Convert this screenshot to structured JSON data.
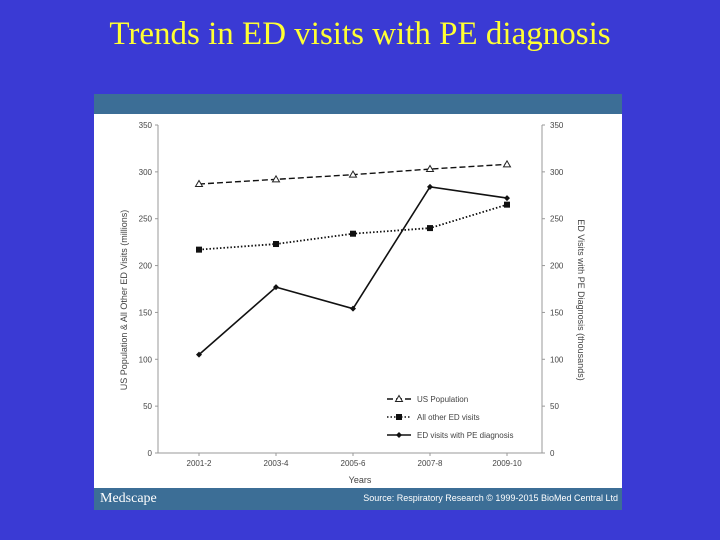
{
  "slide": {
    "title": "Trends in ED visits with PE diagnosis",
    "brand": "Medscape",
    "source": "Source: Respiratory Research © 1999-2015 BioMed Central Ltd"
  },
  "chart_data": {
    "type": "line",
    "categories": [
      "2001-2",
      "2003-4",
      "2005-6",
      "2007-8",
      "2009-10"
    ],
    "xlabel": "Years",
    "ylabel_left": "US Population & All Other ED Visits (millions)",
    "ylabel_right": "ED Visits with PE Diagnosis (thousands)",
    "ylim_left": [
      0,
      350
    ],
    "ylim_right": [
      0,
      350
    ],
    "yticks": [
      0,
      50,
      100,
      150,
      200,
      250,
      300,
      350
    ],
    "grid": false,
    "legend_position": "bottom-right",
    "series": [
      {
        "name": "US Population",
        "axis": "left",
        "style": "dashed",
        "marker": "triangle",
        "values": [
          287,
          292,
          297,
          303,
          308
        ]
      },
      {
        "name": "All other ED visits",
        "axis": "left",
        "style": "dotted",
        "marker": "square",
        "values": [
          217,
          223,
          234,
          240,
          265
        ]
      },
      {
        "name": "ED visits with PE diagnosis",
        "axis": "right",
        "style": "solid",
        "marker": "diamond",
        "values": [
          105,
          177,
          154,
          284,
          272
        ]
      }
    ]
  }
}
